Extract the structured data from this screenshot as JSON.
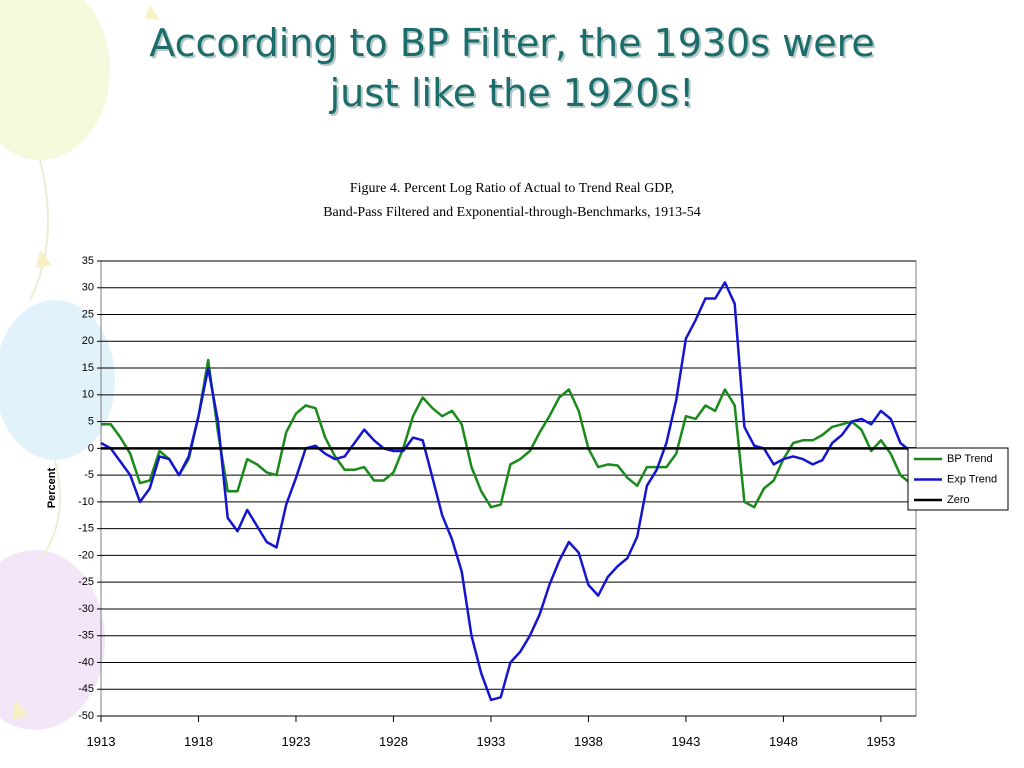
{
  "chart_data": {
    "type": "line",
    "title": "According to BP Filter, the 1930s were just like the 1920s!",
    "subtitle": [
      "Figure 4.  Percent Log Ratio of Actual to Trend Real GDP,",
      "Band-Pass Filtered and Exponential-through-Benchmarks, 1913-54"
    ],
    "y_label": "Percent",
    "x": [
      1913,
      1913.5,
      1914,
      1914.5,
      1915,
      1915.5,
      1916,
      1916.5,
      1917,
      1917.5,
      1918,
      1918.5,
      1919,
      1919.5,
      1920,
      1920.5,
      1921,
      1921.5,
      1922,
      1922.5,
      1923,
      1923.5,
      1924,
      1924.5,
      1925,
      1925.5,
      1926,
      1926.5,
      1927,
      1927.5,
      1928,
      1928.5,
      1929,
      1929.5,
      1930,
      1930.5,
      1931,
      1931.5,
      1932,
      1932.5,
      1933,
      1933.5,
      1934,
      1934.5,
      1935,
      1935.5,
      1936,
      1936.5,
      1937,
      1937.5,
      1938,
      1938.5,
      1939,
      1939.5,
      1940,
      1940.5,
      1941,
      1941.5,
      1942,
      1942.5,
      1943,
      1943.5,
      1944,
      1944.5,
      1945,
      1945.5,
      1946,
      1946.5,
      1947,
      1947.5,
      1948,
      1948.5,
      1949,
      1949.5,
      1950,
      1950.5,
      1951,
      1951.5,
      1952,
      1952.5,
      1953,
      1953.5,
      1954,
      1954.5
    ],
    "series": [
      {
        "name": "BP Trend",
        "color": "#1a8a1a",
        "values": [
          4.5,
          4.5,
          2,
          -1,
          -6.5,
          -6,
          -0.5,
          -2,
          -5,
          -2,
          6,
          16.5,
          3,
          -8,
          -8,
          -2,
          -3,
          -4.5,
          -5,
          3,
          6.5,
          8,
          7.5,
          2,
          -1.5,
          -4,
          -4,
          -3.5,
          -6,
          -6,
          -4.5,
          0,
          6,
          9.5,
          7.5,
          6,
          7,
          4.5,
          -3.5,
          -8,
          -11,
          -10.5,
          -3,
          -2,
          -0.5,
          3,
          6,
          9.5,
          11,
          7,
          0,
          -3.5,
          -3,
          -3.2,
          -5.5,
          -7,
          -3.5,
          -3.5,
          -3.5,
          -1,
          6,
          5.5,
          8,
          7,
          11,
          8,
          -10,
          -11,
          -7.5,
          -6,
          -2,
          1,
          1.5,
          1.5,
          2.5,
          4,
          4.5,
          5,
          3.5,
          -0.5,
          1.5,
          -1,
          -5,
          -6.5
        ]
      },
      {
        "name": "Exp Trend",
        "color": "#1515d0",
        "values": [
          1,
          0,
          -2.5,
          -5,
          -10,
          -7.5,
          -1.5,
          -2,
          -5,
          -1.5,
          6,
          15,
          5,
          -13,
          -15.5,
          -11.5,
          -14.5,
          -17.5,
          -18.5,
          -10.5,
          -5.5,
          0,
          0.5,
          -1,
          -2,
          -1.5,
          1,
          3.5,
          1.5,
          0,
          -0.5,
          -0.5,
          2,
          1.5,
          -5.5,
          -12.5,
          -17,
          -23,
          -35,
          -42,
          -47,
          -46.5,
          -40,
          -38,
          -35,
          -31,
          -25.5,
          -21,
          -17.5,
          -19.5,
          -25.5,
          -27.5,
          -24,
          -22,
          -20.5,
          -16.5,
          -7,
          -4,
          1,
          9,
          20.5,
          24,
          28,
          28,
          31,
          27,
          4,
          0.5,
          0,
          -3,
          -2,
          -1.5,
          -2,
          -3,
          -2.2,
          1,
          2.5,
          5,
          5.5,
          4.5,
          7,
          5.5,
          1,
          -0.5
        ]
      }
    ],
    "reference_line": {
      "name": "Zero",
      "value": 0,
      "color": "#000000"
    },
    "xlim": [
      1913,
      1954.8
    ],
    "xticks": [
      1913,
      1918,
      1923,
      1928,
      1933,
      1938,
      1943,
      1948,
      1953
    ],
    "ylim": [
      -50,
      35
    ],
    "yticks": [
      -50,
      -45,
      -40,
      -35,
      -30,
      -25,
      -20,
      -15,
      -10,
      -5,
      0,
      5,
      10,
      15,
      20,
      25,
      30,
      35
    ],
    "grid": true,
    "legend": "right"
  }
}
